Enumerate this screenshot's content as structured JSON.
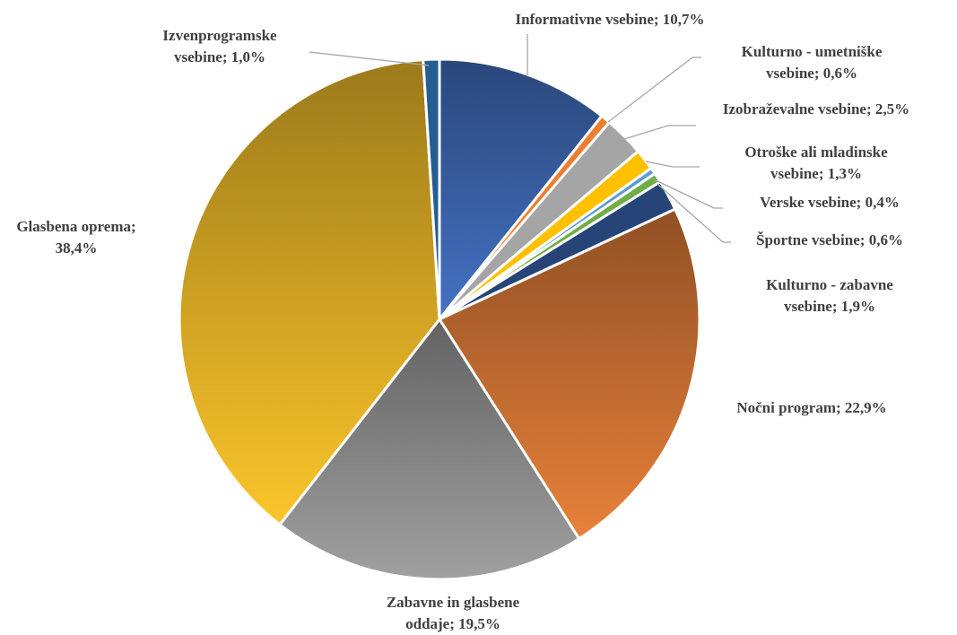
{
  "chart_data": {
    "type": "pie",
    "categories": [
      "Informativne vsebine;",
      "Kulturno - umetniške vsebine;",
      "Izobraževalne vsebine;",
      "Otroške ali mladinske vsebine;",
      "Verske vsebine;",
      "Športne vsebine;",
      "Kulturno - zabavne vsebine;",
      "Nočni program;",
      "Zabavne in glasbene oddaje;",
      "Glasbena oprema;",
      "Izvenprogramske vsebine;"
    ],
    "values": [
      10.7,
      0.6,
      2.5,
      1.3,
      0.4,
      0.6,
      1.9,
      22.9,
      19.5,
      38.4,
      1.0
    ],
    "value_labels": [
      "10,7%",
      "0,6%",
      "2,5%",
      "1,3%",
      "0,4%",
      "0,6%",
      "1,9%",
      "22,9%",
      "19,5%",
      "38,4%",
      "1,0%"
    ],
    "colors": [
      "#4472c4",
      "#ed7d31",
      "#a5a5a5",
      "#ffc000",
      "#5b9bd5",
      "#70ad47",
      "#264478",
      "#e8813a",
      "#a0a0a0",
      "#fbc52a",
      "#255e91"
    ]
  }
}
